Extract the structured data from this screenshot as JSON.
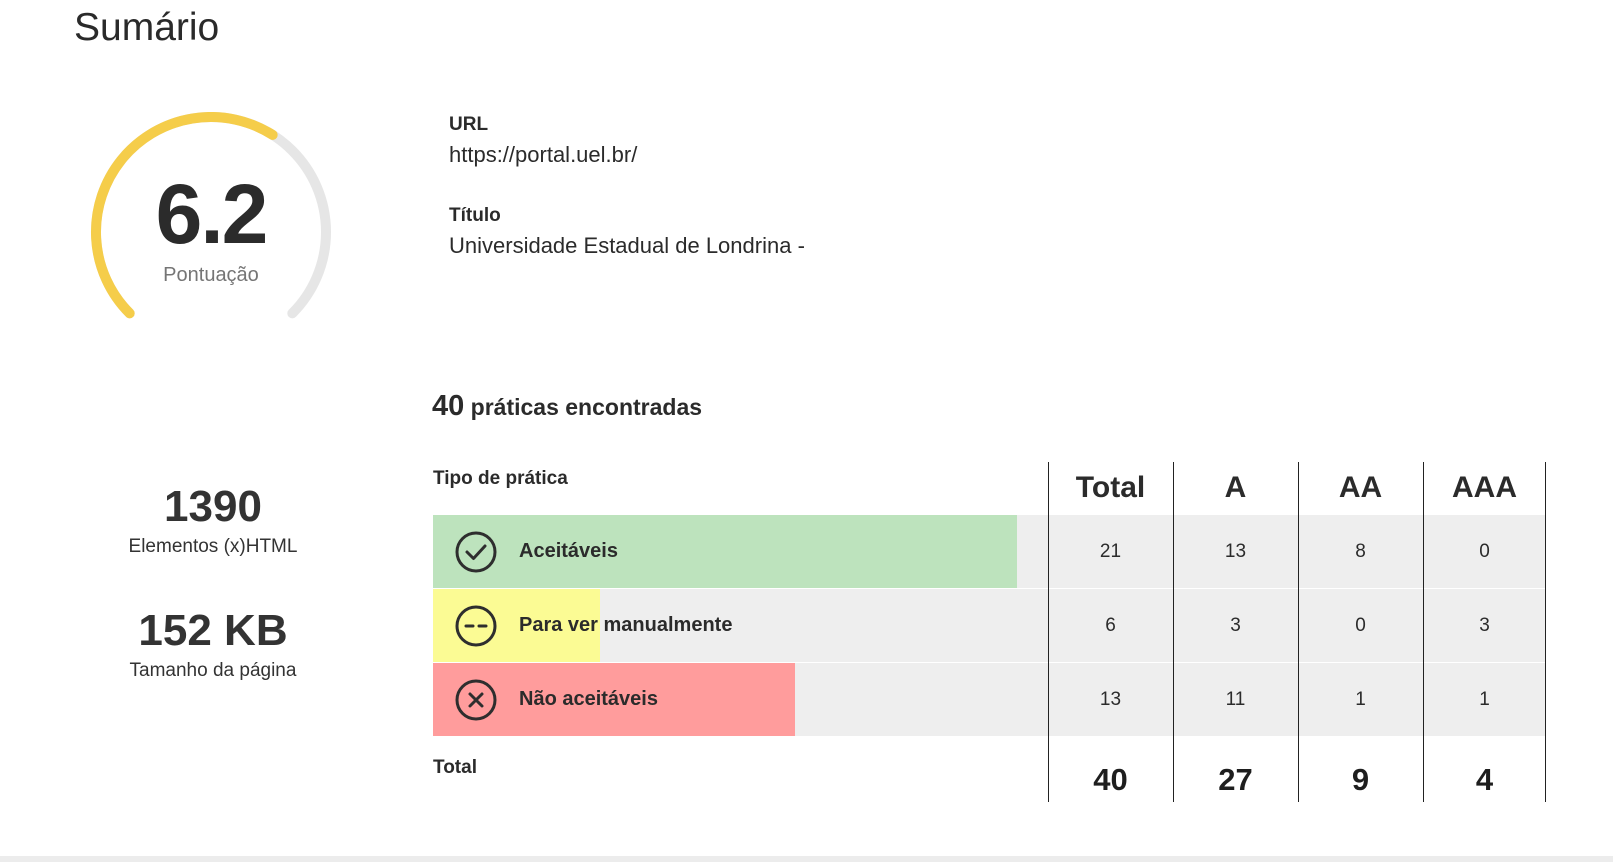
{
  "page_title": "Sumário",
  "score": {
    "value": "6.2",
    "label": "Pontuação",
    "fraction": 0.62,
    "accent": "#f5cd4a",
    "track": "#e6e6e6"
  },
  "url": {
    "label": "URL",
    "value": "https://portal.uel.br/"
  },
  "title_info": {
    "label": "Título",
    "value": "Universidade Estadual de Londrina -"
  },
  "stats": [
    {
      "value": "1390",
      "label": "Elementos (x)HTML"
    },
    {
      "value": "152 KB",
      "label": "Tamanho da página"
    }
  ],
  "practices": {
    "count": "40",
    "text": " práticas encontradas"
  },
  "table": {
    "type_header": "Tipo de prática",
    "columns": [
      "Total",
      "A",
      "AA",
      "AAA"
    ],
    "rows": [
      {
        "label": "Aceitáveis",
        "icon": "check-circle-icon",
        "color": "#bde3bd",
        "bar_fraction": 0.525,
        "values": [
          "21",
          "13",
          "8",
          "0"
        ]
      },
      {
        "label": "Para ver manualmente",
        "icon": "neutral-face-icon",
        "color": "#fbfb94",
        "bar_fraction": 0.15,
        "values": [
          "6",
          "3",
          "0",
          "3"
        ]
      },
      {
        "label": "Não aceitáveis",
        "icon": "x-circle-icon",
        "color": "#ff9c9c",
        "bar_fraction": 0.325,
        "values": [
          "13",
          "11",
          "1",
          "1"
        ]
      }
    ],
    "total_label": "Total",
    "totals": [
      "40",
      "27",
      "9",
      "4"
    ]
  }
}
